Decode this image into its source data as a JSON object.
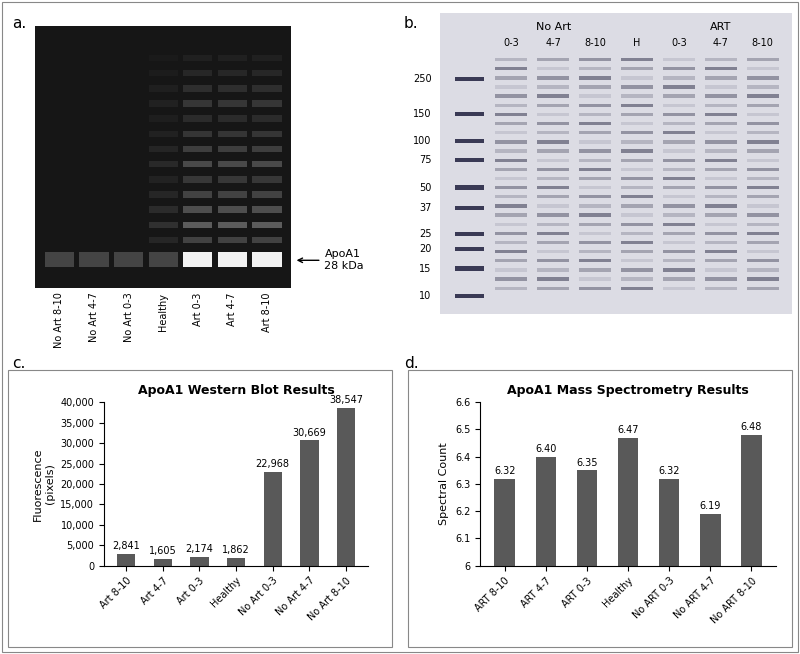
{
  "panel_labels": [
    "a.",
    "b.",
    "c.",
    "d."
  ],
  "western_blot": {
    "lanes": [
      "No Art 8-10",
      "No Art 4-7",
      "No Art 0-3",
      "Healthy",
      "Art 0-3",
      "Art 4-7",
      "Art 8-10"
    ],
    "band_label": {
      "name": "ApoA1",
      "size": "28 kDa"
    }
  },
  "gel": {
    "lane_groups": [
      {
        "label": "No Art",
        "lanes": [
          "0-3",
          "4-7",
          "8-10"
        ]
      },
      {
        "lanes": [
          "H"
        ]
      },
      {
        "label": "ART",
        "lanes": [
          "0-3",
          "4-7",
          "8-10"
        ]
      }
    ],
    "markers": [
      250,
      150,
      100,
      75,
      50,
      37,
      25,
      20,
      15,
      10
    ]
  },
  "chart_data": [
    {
      "type": "bar",
      "title": "ApoA1 Western Blot Results",
      "y_label": "Fluorescence\n(pixels)",
      "categories": [
        "Art 8-10",
        "Art 4-7",
        "Art 0-3",
        "Healthy",
        "No Art 0-3",
        "No Art 4-7",
        "No Art 8-10"
      ],
      "values": [
        2841,
        1605,
        2174,
        1862,
        22968,
        30669,
        38547
      ],
      "value_labels": [
        "2,841",
        "1,605",
        "2,174",
        "1,862",
        "22,968",
        "30,669",
        "38,547"
      ],
      "data_labels": true,
      "color": "#595959",
      "grid": false,
      "ylim": [
        0,
        40000
      ],
      "yticks": [
        0,
        {
          "value": 5000,
          "label": "5,000"
        },
        {
          "value": 10000,
          "label": "10,000"
        },
        {
          "value": 15000,
          "label": "15,000"
        },
        {
          "value": 20000,
          "label": "20,000"
        },
        {
          "value": 25000,
          "label": "25,000"
        },
        {
          "value": 30000,
          "label": "30,000"
        },
        {
          "value": 35000,
          "label": "35,000"
        },
        {
          "value": 40000,
          "label": "40,000"
        }
      ]
    },
    {
      "type": "bar",
      "title": "ApoA1 Mass Spectrometry Results",
      "y_label": "Spectral Count",
      "categories": [
        "ART 8-10",
        "ART 4-7",
        "ART 0-3",
        "Healthy",
        "No ART 0-3",
        "No ART 4-7",
        "No ART 8-10"
      ],
      "values": [
        6.32,
        6.4,
        6.35,
        6.47,
        6.32,
        6.19,
        6.48
      ],
      "value_labels": [
        "6.32",
        "6.40",
        "6.35",
        "6.47",
        "6.32",
        "6.19",
        "6.48"
      ],
      "data_labels": true,
      "color": "#595959",
      "grid": false,
      "ylim": [
        6,
        6.6
      ],
      "yticks": [
        6,
        6.1,
        6.2,
        6.3,
        6.4,
        6.5,
        6.6
      ]
    }
  ]
}
